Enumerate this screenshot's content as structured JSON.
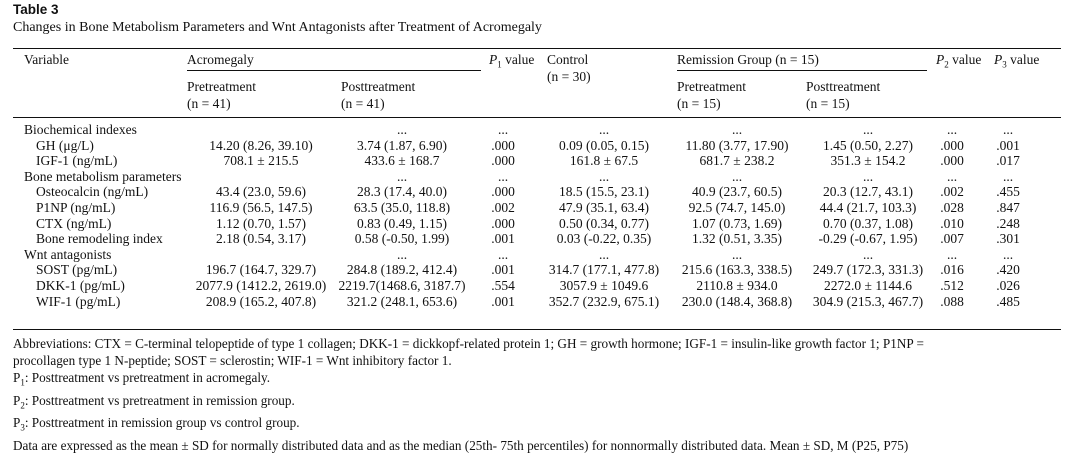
{
  "table_label": "Table 3",
  "caption": "Changes in Bone Metabolism Parameters and Wnt Antagonists after Treatment of Acromegaly",
  "headers": {
    "variable": "Variable",
    "acromegaly": "Acromegaly",
    "p1": "P",
    "p1_sub": "1",
    "p1_suffix": " value",
    "control": "Control",
    "control_n": "(n = 30)",
    "remission": "Remission Group (n = 15)",
    "p2": "P",
    "p2_sub": "2",
    "p2_suffix": " value",
    "p3": "P",
    "p3_sub": "3",
    "p3_suffix": " value",
    "acro_pre": "Pretreatment",
    "acro_pre_n": "(n = 41)",
    "acro_post": "Posttreatment",
    "acro_post_n": "(n = 41)",
    "rem_pre": "Pretreatment",
    "rem_pre_n": "(n = 15)",
    "rem_post": "Posttreatment",
    "rem_post_n": "(n = 15)"
  },
  "rows": [
    {
      "label": "Biochemical indexes",
      "section": true,
      "cells": [
        "",
        "...",
        "...",
        "...",
        "...",
        "...",
        "...",
        "..."
      ]
    },
    {
      "label": "GH (μg/L)",
      "cells": [
        "14.20 (8.26, 39.10)",
        "3.74 (1.87, 6.90)",
        ".000",
        "0.09 (0.05, 0.15)",
        "11.80 (3.77, 17.90)",
        "1.45 (0.50, 2.27)",
        ".000",
        ".001"
      ]
    },
    {
      "label": "IGF-1 (ng/mL)",
      "cells": [
        "708.1 ± 215.5",
        "433.6 ± 168.7",
        ".000",
        "161.8 ± 67.5",
        "681.7 ± 238.2",
        "351.3 ± 154.2",
        ".000",
        ".017"
      ]
    },
    {
      "label": "Bone metabolism parameters",
      "section": true,
      "cells": [
        "",
        "...",
        "...",
        "...",
        "...",
        "...",
        "...",
        "..."
      ]
    },
    {
      "label": "Osteocalcin (ng/mL)",
      "cells": [
        "43.4 (23.0, 59.6)",
        "28.3 (17.4, 40.0)",
        ".000",
        "18.5 (15.5, 23.1)",
        "40.9 (23.7, 60.5)",
        "20.3 (12.7, 43.1)",
        ".002",
        ".455"
      ]
    },
    {
      "label": "P1NP (ng/mL)",
      "cells": [
        "116.9 (56.5, 147.5)",
        "63.5 (35.0, 118.8)",
        ".002",
        "47.9 (35.1, 63.4)",
        "92.5 (74.7, 145.0)",
        "44.4 (21.7, 103.3)",
        ".028",
        ".847"
      ]
    },
    {
      "label": "CTX (ng/mL)",
      "cells": [
        "1.12 (0.70, 1.57)",
        "0.83 (0.49, 1.15)",
        ".000",
        "0.50 (0.34, 0.77)",
        "1.07 (0.73, 1.69)",
        "0.70 (0.37, 1.08)",
        ".010",
        ".248"
      ]
    },
    {
      "label": "Bone remodeling index",
      "cells": [
        "2.18 (0.54, 3.17)",
        "0.58 (-0.50, 1.99)",
        ".001",
        "0.03 (-0.22, 0.35)",
        "1.32 (0.51, 3.35)",
        "-0.29 (-0.67, 1.95)",
        ".007",
        ".301"
      ]
    },
    {
      "label": "Wnt antagonists",
      "section": true,
      "cells": [
        "",
        "...",
        "...",
        "...",
        "...",
        "...",
        "...",
        "..."
      ]
    },
    {
      "label": "SOST (pg/mL)",
      "cells": [
        "196.7 (164.7, 329.7)",
        "284.8 (189.2, 412.4)",
        ".001",
        "314.7 (177.1, 477.8)",
        "215.6 (163.3, 338.5)",
        "249.7 (172.3, 331.3)",
        ".016",
        ".420"
      ]
    },
    {
      "label": "DKK-1 (pg/mL)",
      "cells": [
        "2077.9 (1412.2, 2619.0)",
        "2219.7(1468.6, 3187.7)",
        ".554",
        "3057.9 ± 1049.6",
        "2110.8 ± 934.0",
        "2272.0 ± 1144.6",
        ".512",
        ".026"
      ]
    },
    {
      "label": "WIF-1 (pg/mL)",
      "cells": [
        "208.9 (165.2, 407.8)",
        "321.2 (248.1, 653.6)",
        ".001",
        "352.7 (232.9, 675.1)",
        "230.0 (148.4, 368.8)",
        "304.9 (215.3, 467.7)",
        ".088",
        ".485"
      ]
    }
  ],
  "notes": {
    "abbrev_1": "Abbreviations: CTX = C-terminal telopeptide of type 1 collagen; DKK-1 = dickkopf-related protein 1; GH = growth hormone; IGF-1 = insulin-like growth factor 1; P1NP =",
    "abbrev_2": "procollagen type 1 N-peptide; SOST = sclerostin; WIF-1 = Wnt inhibitory factor 1.",
    "p1": "P",
    "p1_sub": "1",
    "p1_text": ": Posttreatment vs pretreatment in acromegaly.",
    "p2": "P",
    "p2_sub": "2",
    "p2_text": ": Posttreatment vs pretreatment in remission group.",
    "p3": "P",
    "p3_sub": "3",
    "p3_text": ": Posttreatment in remission group vs control group.",
    "data_note": "Data are expressed as the mean ± SD for normally distributed data and as the median (25th- 75th percentiles) for nonnormally distributed data. Mean ± SD, M (P25, P75)"
  }
}
